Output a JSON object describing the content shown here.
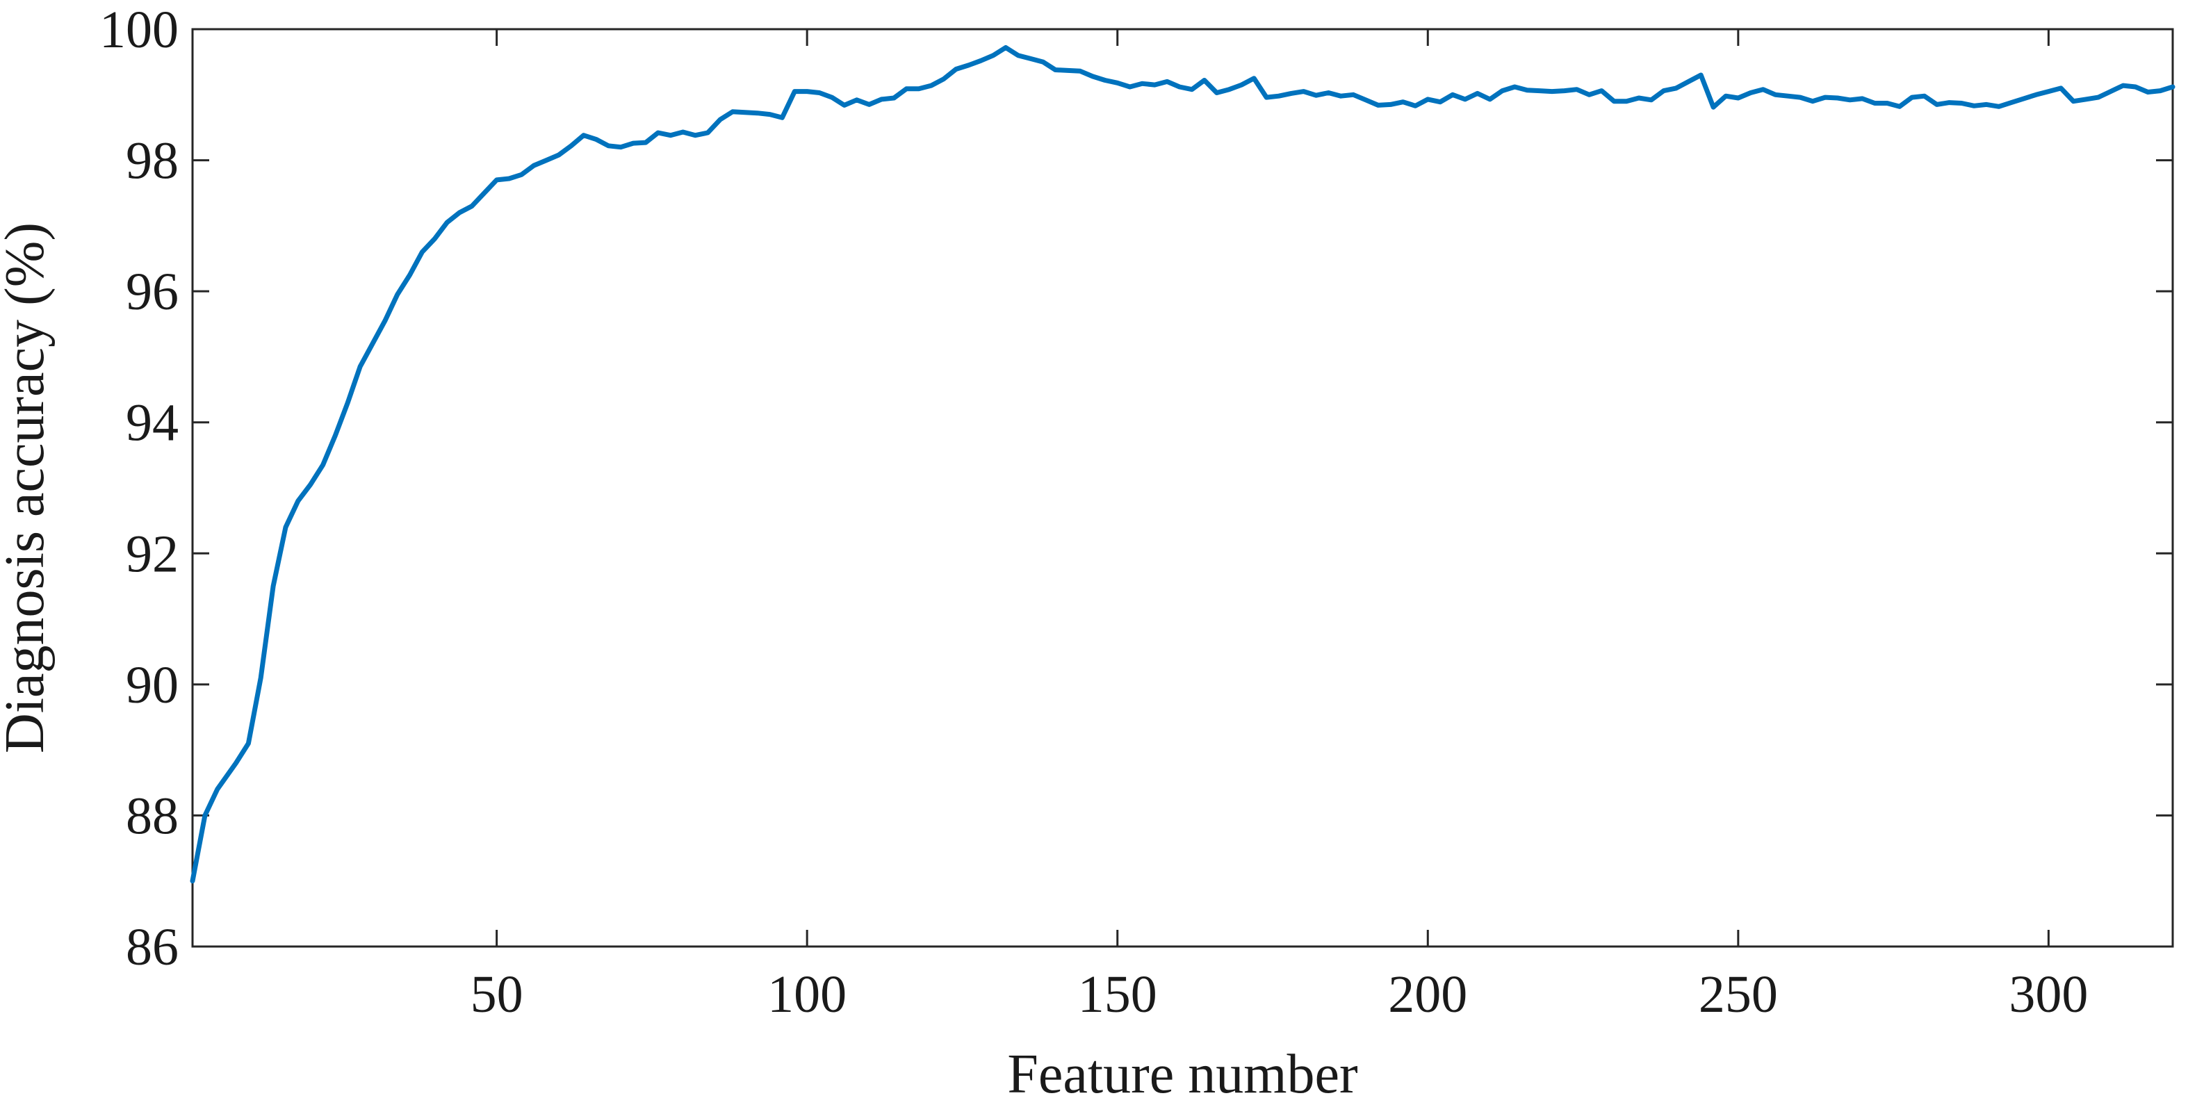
{
  "chart_data": {
    "type": "line",
    "title": "",
    "xlabel": "Feature number",
    "ylabel": "Diagnosis accuracy (%)",
    "xlim": [
      1,
      320
    ],
    "ylim": [
      86,
      100
    ],
    "xticks": [
      50,
      100,
      150,
      200,
      250,
      300
    ],
    "yticks": [
      86,
      88,
      90,
      92,
      94,
      96,
      98,
      100
    ],
    "grid": false,
    "legend": "none",
    "line_color": "#0072BD",
    "series": [
      {
        "x": [
          1,
          3,
          5,
          8,
          10,
          12,
          14,
          16,
          18,
          20,
          22,
          24,
          26,
          28,
          30,
          32,
          34,
          36,
          38,
          40,
          42,
          44,
          46,
          48,
          50,
          52,
          54,
          56,
          58,
          60,
          62,
          64,
          66,
          68,
          70,
          72,
          74,
          76,
          78,
          80,
          82,
          84,
          86,
          88,
          90,
          92,
          94,
          96,
          98,
          100,
          102,
          104,
          106,
          108,
          110,
          112,
          114,
          116,
          118,
          120,
          122,
          124,
          126,
          128,
          130,
          132,
          134,
          136,
          138,
          140,
          142,
          144,
          146,
          148,
          150,
          152,
          154,
          156,
          158,
          160,
          162,
          164,
          166,
          168,
          170,
          172,
          174,
          176,
          178,
          180,
          182,
          184,
          186,
          188,
          190,
          192,
          194,
          196,
          198,
          200,
          202,
          204,
          206,
          208,
          210,
          212,
          214,
          216,
          218,
          220,
          222,
          224,
          226,
          228,
          230,
          232,
          234,
          236,
          238,
          240,
          242,
          244,
          246,
          248,
          250,
          252,
          254,
          256,
          258,
          260,
          262,
          264,
          266,
          268,
          270,
          272,
          274,
          276,
          278,
          280,
          282,
          284,
          286,
          288,
          290,
          292,
          294,
          296,
          298,
          300,
          302,
          304,
          306,
          308,
          310,
          312,
          314,
          316,
          318,
          320
        ],
        "values": [
          87.0,
          88.0,
          88.4,
          88.8,
          89.1,
          90.1,
          91.5,
          92.4,
          92.8,
          93.05,
          93.35,
          93.8,
          94.3,
          94.85,
          95.2,
          95.55,
          95.95,
          96.25,
          96.6,
          96.8,
          97.05,
          97.2,
          97.3,
          97.5,
          97.7,
          97.72,
          97.78,
          97.92,
          98.0,
          98.08,
          98.22,
          98.38,
          98.32,
          98.22,
          98.2,
          98.26,
          98.27,
          98.42,
          98.38,
          98.43,
          98.38,
          98.42,
          98.62,
          98.74,
          98.73,
          98.72,
          98.7,
          98.65,
          99.05,
          99.05,
          99.03,
          98.96,
          98.84,
          98.92,
          98.85,
          98.93,
          98.95,
          99.09,
          99.09,
          99.14,
          99.24,
          99.39,
          99.45,
          99.52,
          99.6,
          99.72,
          99.6,
          99.55,
          99.5,
          99.38,
          99.37,
          99.36,
          99.28,
          99.22,
          99.18,
          99.12,
          99.17,
          99.15,
          99.2,
          99.12,
          99.08,
          99.22,
          99.03,
          99.08,
          99.15,
          99.25,
          98.96,
          98.98,
          99.02,
          99.05,
          98.99,
          99.03,
          98.98,
          99.0,
          98.92,
          98.84,
          98.85,
          98.89,
          98.83,
          98.93,
          98.89,
          99.0,
          98.93,
          99.02,
          98.93,
          99.06,
          99.12,
          99.07,
          99.06,
          99.05,
          99.06,
          99.08,
          99.0,
          99.06,
          98.9,
          98.9,
          98.95,
          98.92,
          99.06,
          99.1,
          99.2,
          99.3,
          98.81,
          98.98,
          98.95,
          99.03,
          99.08,
          99.0,
          98.98,
          98.96,
          98.9,
          98.96,
          98.95,
          98.92,
          98.94,
          98.87,
          98.87,
          98.82,
          98.96,
          98.98,
          98.85,
          98.88,
          98.87,
          98.83,
          98.85,
          98.82,
          98.88,
          98.94,
          99.0,
          99.05,
          99.1,
          98.9,
          98.93,
          98.96,
          99.05,
          99.14,
          99.12,
          99.04,
          99.06,
          99.12
        ]
      }
    ]
  }
}
